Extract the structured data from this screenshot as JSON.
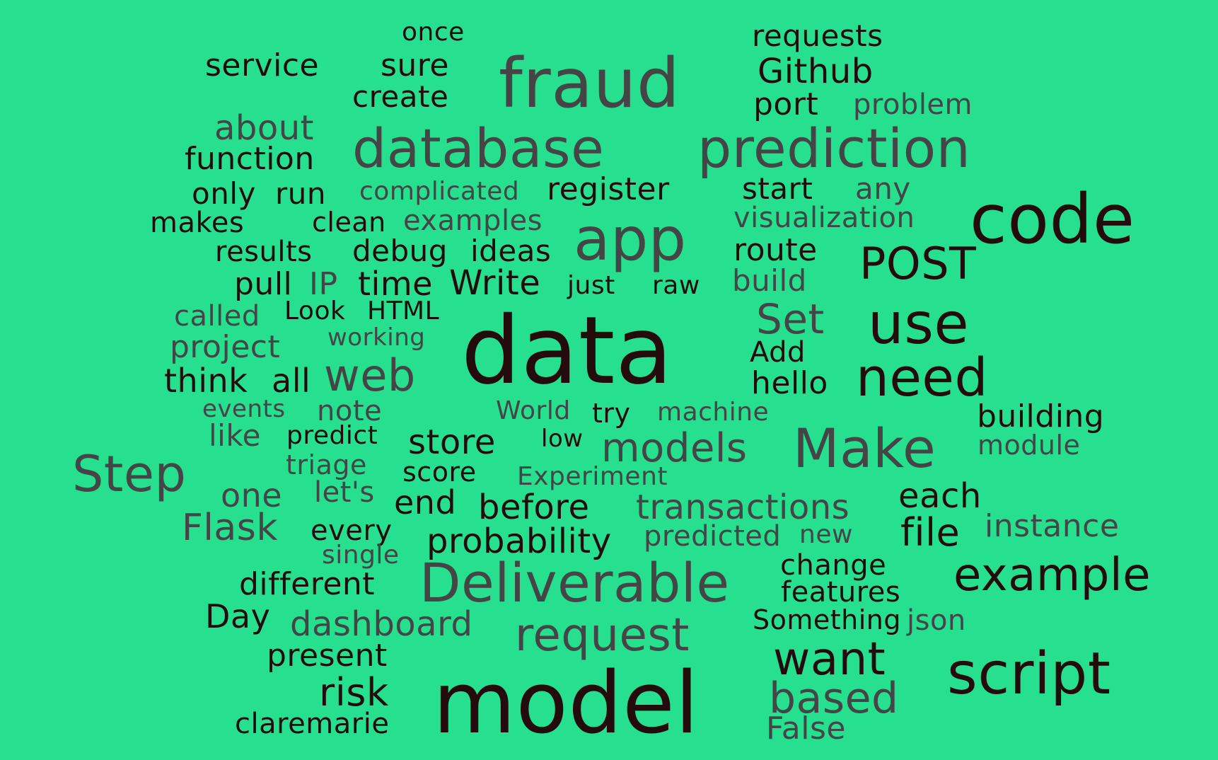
{
  "colors": {
    "background": "#26e08f",
    "dark": "#240c0c",
    "grey": "#454545"
  },
  "words": [
    {
      "text": "once",
      "tone": "dark"
    },
    {
      "text": "service",
      "tone": "dark"
    },
    {
      "text": "sure",
      "tone": "dark"
    },
    {
      "text": "create",
      "tone": "dark"
    },
    {
      "text": "fraud",
      "tone": "grey"
    },
    {
      "text": "requests",
      "tone": "dark"
    },
    {
      "text": "Github",
      "tone": "dark"
    },
    {
      "text": "port",
      "tone": "dark"
    },
    {
      "text": "problem",
      "tone": "grey"
    },
    {
      "text": "about",
      "tone": "grey"
    },
    {
      "text": "function",
      "tone": "dark"
    },
    {
      "text": "database",
      "tone": "grey"
    },
    {
      "text": "prediction",
      "tone": "grey"
    },
    {
      "text": "only",
      "tone": "dark"
    },
    {
      "text": "run",
      "tone": "dark"
    },
    {
      "text": "complicated",
      "tone": "grey"
    },
    {
      "text": "register",
      "tone": "dark"
    },
    {
      "text": "start",
      "tone": "dark"
    },
    {
      "text": "any",
      "tone": "grey"
    },
    {
      "text": "code",
      "tone": "dark"
    },
    {
      "text": "makes",
      "tone": "dark"
    },
    {
      "text": "clean",
      "tone": "dark"
    },
    {
      "text": "examples",
      "tone": "grey"
    },
    {
      "text": "visualization",
      "tone": "grey"
    },
    {
      "text": "app",
      "tone": "grey"
    },
    {
      "text": "results",
      "tone": "dark"
    },
    {
      "text": "debug",
      "tone": "dark"
    },
    {
      "text": "ideas",
      "tone": "dark"
    },
    {
      "text": "route",
      "tone": "dark"
    },
    {
      "text": "POST",
      "tone": "dark"
    },
    {
      "text": "pull",
      "tone": "dark"
    },
    {
      "text": "IP",
      "tone": "grey"
    },
    {
      "text": "time",
      "tone": "dark"
    },
    {
      "text": "Write",
      "tone": "dark"
    },
    {
      "text": "just",
      "tone": "dark"
    },
    {
      "text": "raw",
      "tone": "dark"
    },
    {
      "text": "build",
      "tone": "grey"
    },
    {
      "text": "called",
      "tone": "grey"
    },
    {
      "text": "Look",
      "tone": "dark"
    },
    {
      "text": "HTML",
      "tone": "dark"
    },
    {
      "text": "Set",
      "tone": "grey"
    },
    {
      "text": "use",
      "tone": "dark"
    },
    {
      "text": "project",
      "tone": "grey"
    },
    {
      "text": "working",
      "tone": "grey"
    },
    {
      "text": "data",
      "tone": "dark"
    },
    {
      "text": "Add",
      "tone": "dark"
    },
    {
      "text": "think",
      "tone": "dark"
    },
    {
      "text": "all",
      "tone": "dark"
    },
    {
      "text": "web",
      "tone": "grey"
    },
    {
      "text": "hello",
      "tone": "dark"
    },
    {
      "text": "need",
      "tone": "dark"
    },
    {
      "text": "events",
      "tone": "grey"
    },
    {
      "text": "note",
      "tone": "grey"
    },
    {
      "text": "World",
      "tone": "grey"
    },
    {
      "text": "try",
      "tone": "dark"
    },
    {
      "text": "machine",
      "tone": "grey"
    },
    {
      "text": "building",
      "tone": "dark"
    },
    {
      "text": "like",
      "tone": "grey"
    },
    {
      "text": "predict",
      "tone": "dark"
    },
    {
      "text": "store",
      "tone": "dark"
    },
    {
      "text": "low",
      "tone": "dark"
    },
    {
      "text": "models",
      "tone": "grey"
    },
    {
      "text": "Make",
      "tone": "grey"
    },
    {
      "text": "module",
      "tone": "grey"
    },
    {
      "text": "Step",
      "tone": "grey"
    },
    {
      "text": "triage",
      "tone": "grey"
    },
    {
      "text": "score",
      "tone": "dark"
    },
    {
      "text": "Experiment",
      "tone": "grey"
    },
    {
      "text": "one",
      "tone": "grey"
    },
    {
      "text": "let's",
      "tone": "grey"
    },
    {
      "text": "end",
      "tone": "dark"
    },
    {
      "text": "before",
      "tone": "dark"
    },
    {
      "text": "transactions",
      "tone": "grey"
    },
    {
      "text": "each",
      "tone": "dark"
    },
    {
      "text": "Flask",
      "tone": "grey"
    },
    {
      "text": "every",
      "tone": "dark"
    },
    {
      "text": "probability",
      "tone": "dark"
    },
    {
      "text": "predicted",
      "tone": "grey"
    },
    {
      "text": "new",
      "tone": "grey"
    },
    {
      "text": "file",
      "tone": "dark"
    },
    {
      "text": "instance",
      "tone": "grey"
    },
    {
      "text": "single",
      "tone": "grey"
    },
    {
      "text": "change",
      "tone": "dark"
    },
    {
      "text": "different",
      "tone": "dark"
    },
    {
      "text": "Deliverable",
      "tone": "grey"
    },
    {
      "text": "features",
      "tone": "dark"
    },
    {
      "text": "example",
      "tone": "dark"
    },
    {
      "text": "Day",
      "tone": "dark"
    },
    {
      "text": "dashboard",
      "tone": "grey"
    },
    {
      "text": "Something",
      "tone": "dark"
    },
    {
      "text": "json",
      "tone": "grey"
    },
    {
      "text": "request",
      "tone": "grey"
    },
    {
      "text": "present",
      "tone": "dark"
    },
    {
      "text": "want",
      "tone": "dark"
    },
    {
      "text": "script",
      "tone": "dark"
    },
    {
      "text": "risk",
      "tone": "dark"
    },
    {
      "text": "model",
      "tone": "dark"
    },
    {
      "text": "based",
      "tone": "grey"
    },
    {
      "text": "claremarie",
      "tone": "dark"
    },
    {
      "text": "False",
      "tone": "grey"
    }
  ]
}
